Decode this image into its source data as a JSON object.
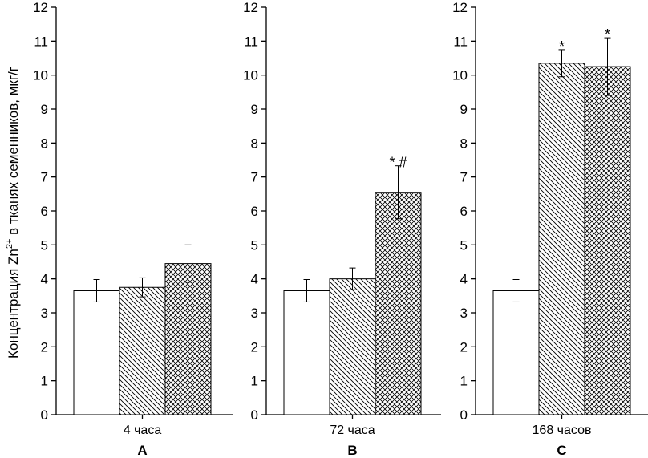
{
  "chart_data": {
    "type": "bar",
    "ylabel_main": "Концентрация Zn",
    "ylabel_sup": "2+",
    "ylabel_rest": " в тканях семенников, мкг/г",
    "ylim": [
      0,
      12
    ],
    "yticks": [
      "0",
      "1",
      "2",
      "3",
      "4",
      "5",
      "6",
      "7",
      "8",
      "9",
      "10",
      "11",
      "12"
    ],
    "series_patterns": [
      "white",
      "diagonal",
      "crosshatch"
    ],
    "panels": [
      {
        "category": "4 часа",
        "letter": "A",
        "values": [
          3.65,
          3.75,
          4.45
        ],
        "errors": [
          0.33,
          0.28,
          0.55
        ],
        "marks": [
          "",
          "",
          ""
        ]
      },
      {
        "category": "72 часа",
        "letter": "B",
        "values": [
          3.65,
          4.0,
          6.55
        ],
        "errors": [
          0.33,
          0.32,
          0.78
        ],
        "marks": [
          "",
          "",
          "* #"
        ]
      },
      {
        "category": "168 часов",
        "letter": "C",
        "values": [
          3.65,
          10.35,
          10.25
        ],
        "errors": [
          0.33,
          0.4,
          0.85
        ],
        "marks": [
          "",
          "*",
          "*"
        ]
      }
    ]
  }
}
